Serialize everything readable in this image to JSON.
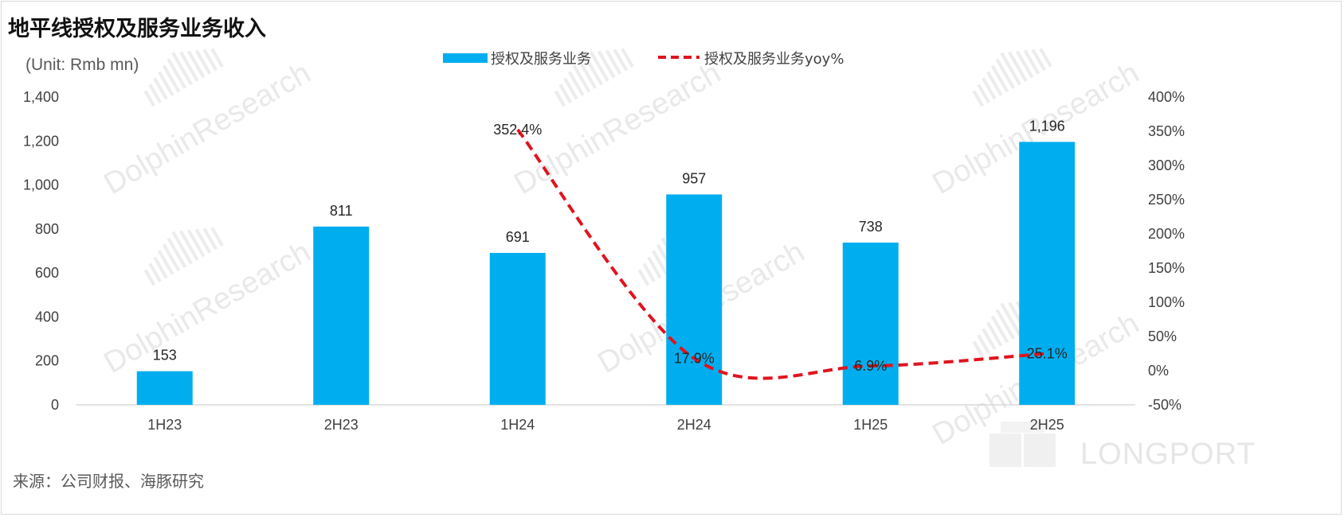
{
  "title": "地平线授权及服务业务收入",
  "unit": "(Unit: Rmb mn)",
  "source": "来源：公司财报、海豚研究",
  "watermark": "DolphinResearch",
  "brand_mark": "LONGPORT",
  "colors": {
    "bar": "#00aeef",
    "line": "#e0141e",
    "axis": "#d9d9d9"
  },
  "chart_data": {
    "type": "bar",
    "categories": [
      "1H23",
      "2H23",
      "1H24",
      "2H24",
      "1H25",
      "2H25"
    ],
    "series": [
      {
        "name": "授权及服务业务",
        "type": "bar",
        "axis": "left",
        "values": [
          153,
          811,
          691,
          957,
          738,
          1196
        ],
        "labels": [
          "153",
          "811",
          "691",
          "957",
          "738",
          "1,196"
        ]
      },
      {
        "name": "授权及服务业务yoy%",
        "type": "line",
        "axis": "right",
        "style": "dashed",
        "values": [
          null,
          null,
          352.4,
          17.9,
          6.9,
          25.1
        ],
        "labels": [
          "",
          "",
          "352.4%",
          "17.9%",
          "6.9%",
          "25.1%"
        ]
      }
    ],
    "y_left": {
      "ylim": [
        0,
        1400
      ],
      "ticks": [
        "0",
        "200",
        "400",
        "600",
        "800",
        "1,000",
        "1,200",
        "1,400"
      ]
    },
    "y_right": {
      "ylim": [
        -50,
        400
      ],
      "ticks": [
        "-50%",
        "0%",
        "50%",
        "100%",
        "150%",
        "200%",
        "250%",
        "300%",
        "350%",
        "400%"
      ]
    },
    "legend_position": "top-center",
    "grid": false
  }
}
